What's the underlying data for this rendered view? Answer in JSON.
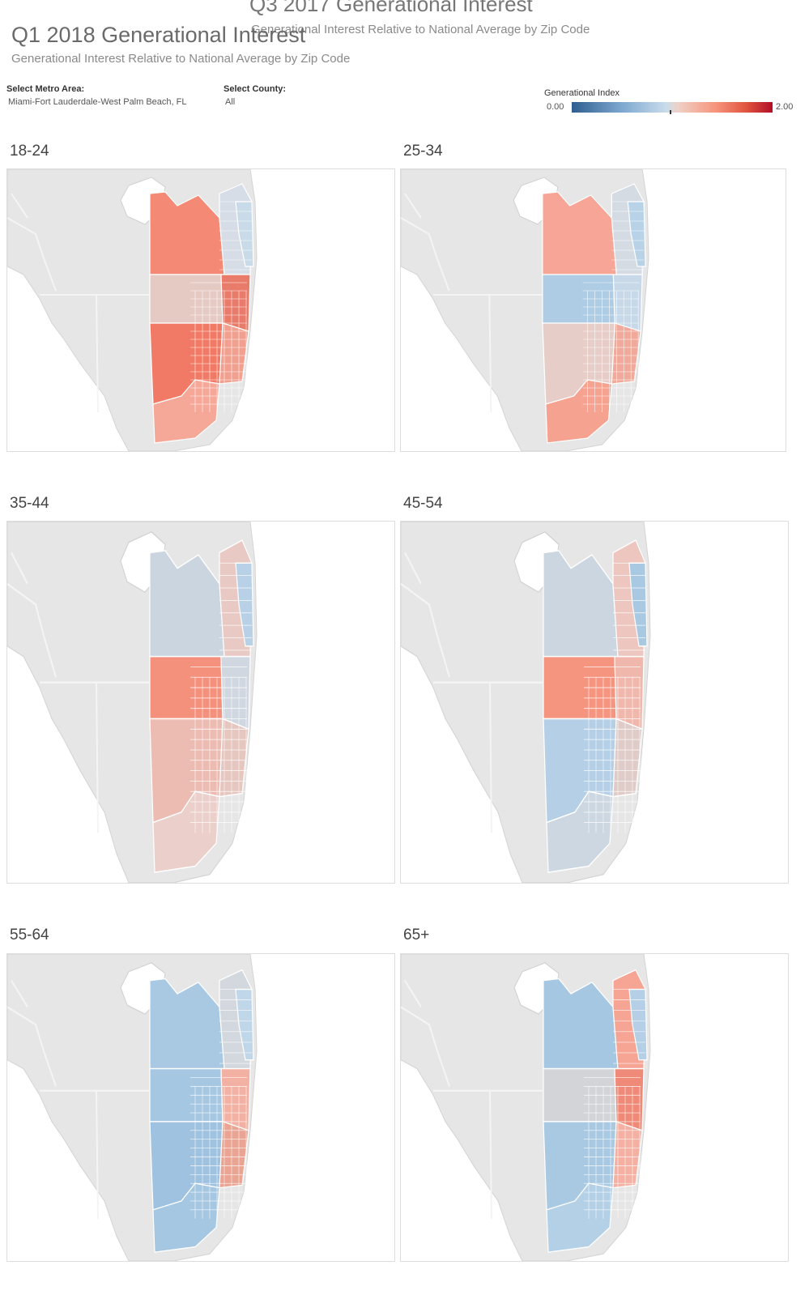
{
  "header": {
    "ghost_title": "Q3 2017 Generational Interest",
    "ghost_subtitle": "Generational Interest Relative to National Average by Zip Code",
    "title": "Q1 2018 Generational Interest",
    "subtitle": "Generational Interest Relative to National Average by Zip Code"
  },
  "filters": {
    "metro": {
      "label": "Select Metro Area:",
      "value": "Miami-Fort Lauderdale-West Palm Beach, FL"
    },
    "county": {
      "label": "Select County:",
      "value": "All"
    }
  },
  "legend": {
    "title": "Generational Index",
    "min_label": "0.00",
    "max_label": "2.00",
    "min": 0.0,
    "max": 2.0,
    "colors": {
      "low": "#2e5e8f",
      "mid_low": "#a9c9e3",
      "neutral": "#d9d9d9",
      "mid_high": "#f6937a",
      "high": "#b20e28"
    }
  },
  "panels": [
    {
      "label": "18-24",
      "fills": {
        "palm_beach_west": "#f48a75",
        "palm_beach_east": "#d6dde6",
        "broward_west": "#e5cac4",
        "dade_north": "#f07a66",
        "dade_south": "#f6a898",
        "coast": "#e87b6a",
        "coast_mix": "#f1a090",
        "coast_alt": "#c9dbe9"
      }
    },
    {
      "label": "25-34",
      "fills": {
        "palm_beach_west": "#f7a596",
        "palm_beach_east": "#d5dbe3",
        "broward_west": "#aecde4",
        "dade_north": "#e7cdc7",
        "dade_south": "#f5a290",
        "coast": "#c7d9e8",
        "coast_mix": "#f0aa9b",
        "coast_alt": "#b8d3e8"
      }
    },
    {
      "label": "35-44",
      "fills": {
        "palm_beach_west": "#cbd5e0",
        "palm_beach_east": "#e9c9c3",
        "broward_west": "#f4917c",
        "dade_north": "#ecbcb3",
        "dade_south": "#ebcfca",
        "coast": "#d0d7e0",
        "coast_mix": "#e6c7c0",
        "coast_alt": "#b9d1e6"
      }
    },
    {
      "label": "45-54",
      "fills": {
        "palm_beach_west": "#ccd6e0",
        "palm_beach_east": "#edc6bf",
        "broward_west": "#f5947f",
        "dade_north": "#b5d0e6",
        "dade_south": "#cdd7e1",
        "coast": "#f0b8ad",
        "coast_mix": "#dfccc8",
        "coast_alt": "#a9c9e3"
      }
    },
    {
      "label": "55-64",
      "fills": {
        "palm_beach_west": "#a9c9e3",
        "palm_beach_east": "#d3d8de",
        "broward_west": "#a6c7e2",
        "dade_north": "#9fc2e0",
        "dade_south": "#a6c7e2",
        "coast": "#f3b1a4",
        "coast_mix": "#e9a493",
        "coast_alt": "#c0d6e9"
      }
    },
    {
      "label": "65+",
      "fills": {
        "palm_beach_west": "#a6c7e2",
        "palm_beach_east": "#f6a493",
        "broward_west": "#d3d4d8",
        "dade_north": "#a9c9e3",
        "dade_south": "#b4d0e7",
        "coast": "#ee8a77",
        "coast_mix": "#f3b0a3",
        "coast_alt": "#b4cfe6"
      }
    }
  ]
}
